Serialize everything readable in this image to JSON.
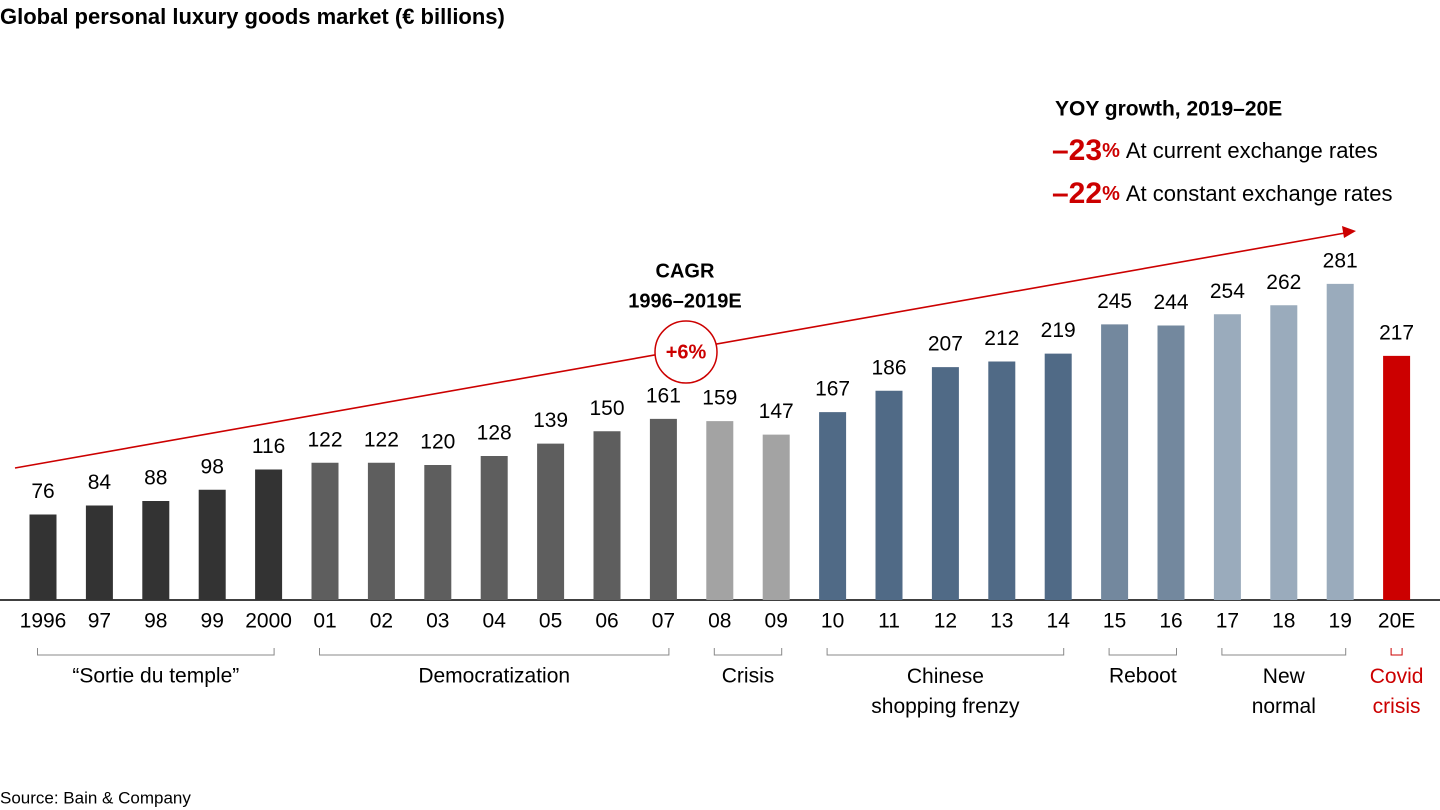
{
  "chart_data": {
    "type": "bar",
    "title": "Global personal luxury goods market (€ billions)",
    "categories": [
      "1996",
      "97",
      "98",
      "99",
      "2000",
      "01",
      "02",
      "03",
      "04",
      "05",
      "06",
      "07",
      "08",
      "09",
      "10",
      "11",
      "12",
      "13",
      "14",
      "15",
      "16",
      "17",
      "18",
      "19",
      "20E"
    ],
    "series": [
      {
        "name": "“Sortie du temple”",
        "color": "#333333",
        "values": [
          76,
          84,
          88,
          98,
          116,
          null,
          null,
          null,
          null,
          null,
          null,
          null,
          null,
          null,
          null,
          null,
          null,
          null,
          null,
          null,
          null,
          null,
          null,
          null,
          null
        ]
      },
      {
        "name": "Democratization",
        "color": "#5e5e5e",
        "values": [
          null,
          null,
          null,
          null,
          null,
          122,
          122,
          120,
          128,
          139,
          150,
          161,
          null,
          null,
          null,
          null,
          null,
          null,
          null,
          null,
          null,
          null,
          null,
          null,
          null
        ]
      },
      {
        "name": "Crisis",
        "color": "#a3a3a3",
        "values": [
          null,
          null,
          null,
          null,
          null,
          null,
          null,
          null,
          null,
          null,
          null,
          null,
          159,
          147,
          null,
          null,
          null,
          null,
          null,
          null,
          null,
          null,
          null,
          null,
          null
        ]
      },
      {
        "name": "Chinese\nshopping frenzy",
        "color": "#506a86",
        "values": [
          null,
          null,
          null,
          null,
          null,
          null,
          null,
          null,
          null,
          null,
          null,
          null,
          null,
          null,
          167,
          186,
          207,
          212,
          219,
          null,
          null,
          null,
          null,
          null,
          null
        ]
      },
      {
        "name": "Reboot",
        "color": "#73889e",
        "values": [
          null,
          null,
          null,
          null,
          null,
          null,
          null,
          null,
          null,
          null,
          null,
          null,
          null,
          null,
          null,
          null,
          null,
          null,
          null,
          245,
          244,
          null,
          null,
          null,
          null
        ]
      },
      {
        "name": "New\nnormal",
        "color": "#9aabbc",
        "values": [
          null,
          null,
          null,
          null,
          null,
          null,
          null,
          null,
          null,
          null,
          null,
          null,
          null,
          null,
          null,
          null,
          null,
          null,
          null,
          null,
          null,
          254,
          262,
          281,
          null
        ]
      },
      {
        "name": "Covid\ncrisis",
        "color": "#cc0000",
        "values": [
          null,
          null,
          null,
          null,
          null,
          null,
          null,
          null,
          null,
          null,
          null,
          null,
          null,
          null,
          null,
          null,
          null,
          null,
          null,
          null,
          null,
          null,
          null,
          null,
          217
        ]
      }
    ],
    "cagr_title": "CAGR",
    "cagr_period": "1996–2019E",
    "cagr_value": "+6%",
    "yoy_title": "YOY growth, 2019–20E",
    "yoy_rows": [
      {
        "value": "–23",
        "unit": "%",
        "text": "At current exchange rates"
      },
      {
        "value": "–22",
        "unit": "%",
        "text": "At constant exchange rates"
      }
    ],
    "source": "Source: Bain & Company"
  }
}
